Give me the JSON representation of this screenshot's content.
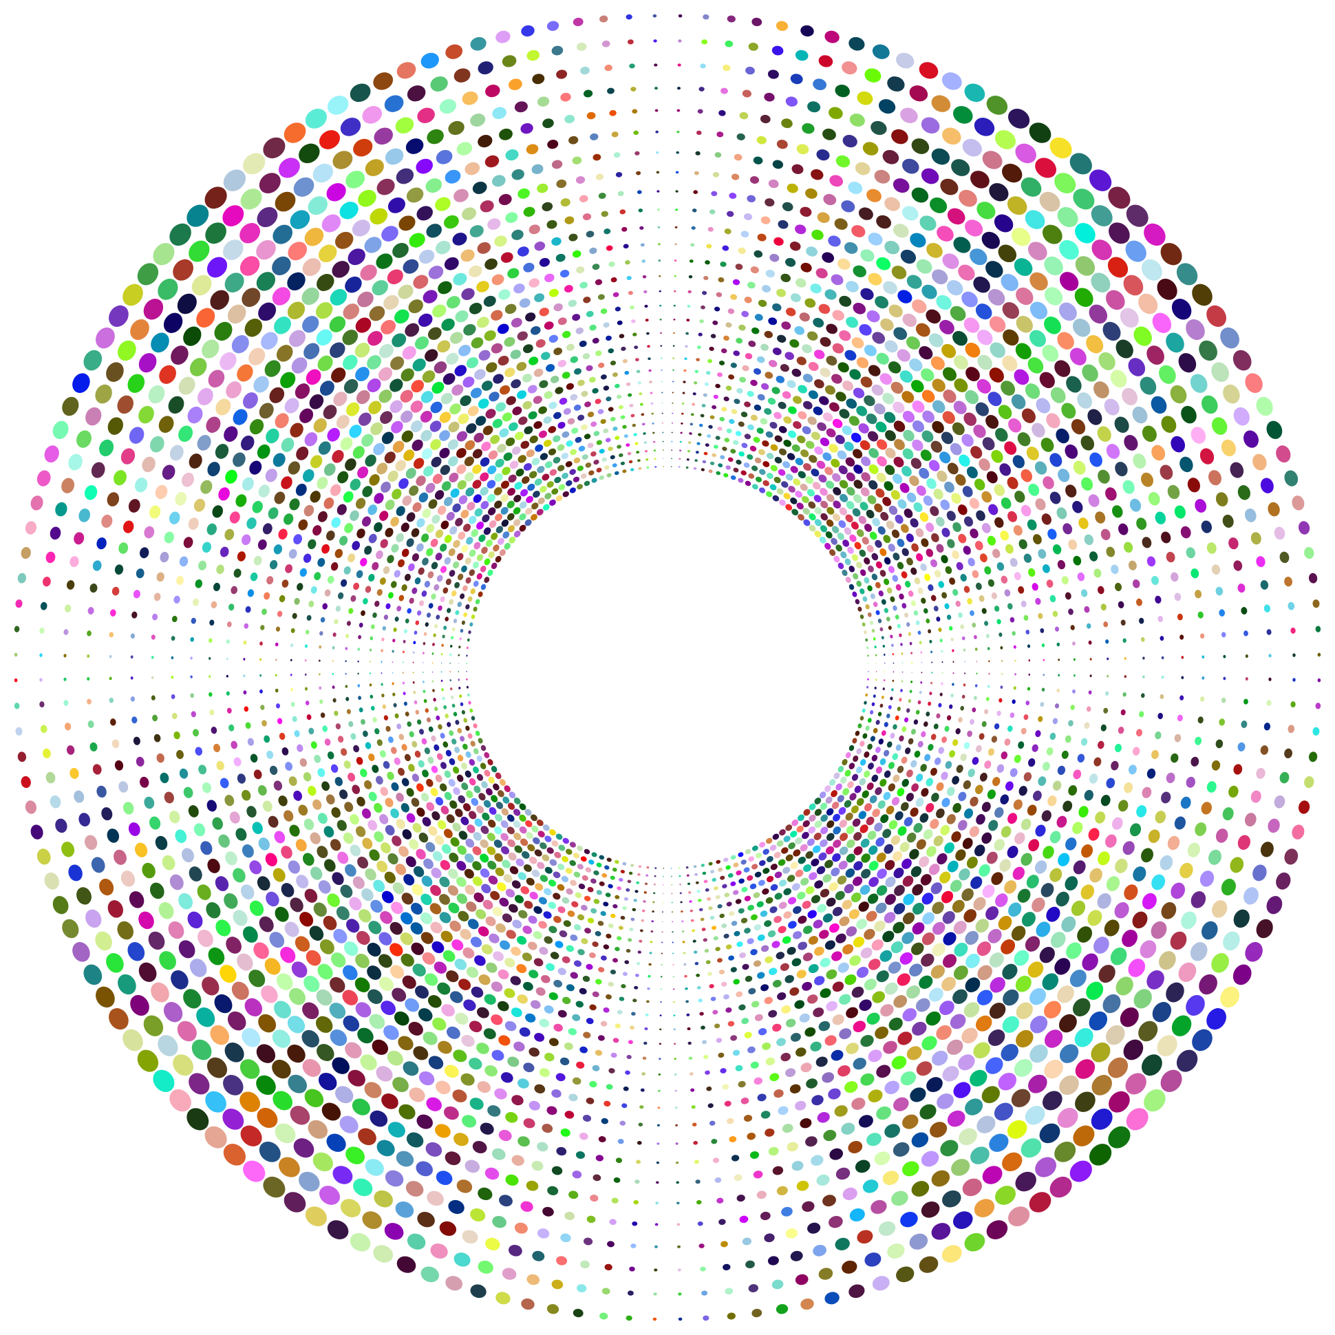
{
  "artwork": {
    "kind": "radial-dot-burst",
    "background_color": "#ffffff",
    "center_hole": true,
    "dot_shape": "ellipse",
    "palette_style": "random multicolor"
  }
}
